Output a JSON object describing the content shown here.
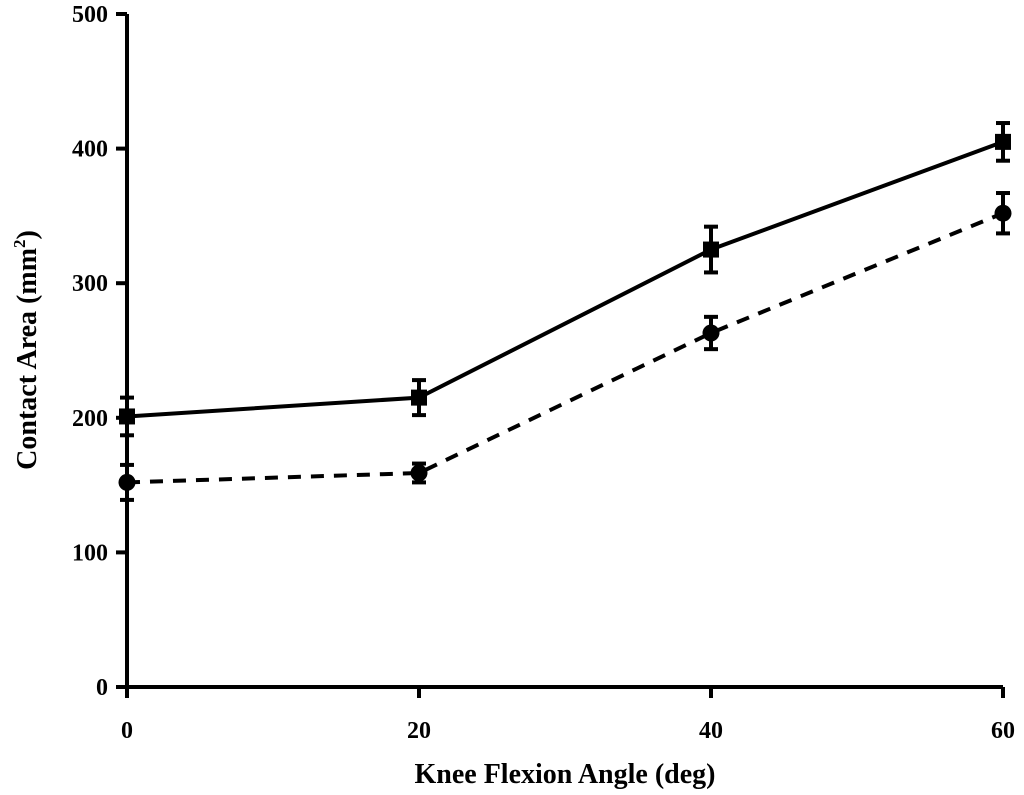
{
  "chart_data": {
    "type": "line",
    "x": [
      0,
      20,
      40,
      60
    ],
    "xlabel": "Knee Flexion Angle (deg)",
    "ylabel_text": "Contact Area (mm",
    "ylabel_superscript": "2",
    "ylabel_close": ")",
    "xlim": [
      0,
      60
    ],
    "ylim": [
      0,
      500
    ],
    "xticks": [
      0,
      20,
      40,
      60
    ],
    "yticks": [
      0,
      100,
      200,
      300,
      400,
      500
    ],
    "xtick_labels": [
      "0",
      "20",
      "40",
      "60"
    ],
    "ytick_labels": [
      "0",
      "100",
      "200",
      "300",
      "400",
      "500"
    ],
    "grid": false,
    "legend": false,
    "series": [
      {
        "marker": "square",
        "line_style": "solid",
        "color": "#000000",
        "values": [
          201,
          215,
          325,
          405
        ],
        "errors": [
          14,
          13,
          17,
          14
        ]
      },
      {
        "marker": "circle",
        "line_style": "dashed",
        "color": "#000000",
        "values": [
          152,
          159,
          263,
          352
        ],
        "errors": [
          13,
          7,
          12,
          15
        ]
      }
    ]
  }
}
